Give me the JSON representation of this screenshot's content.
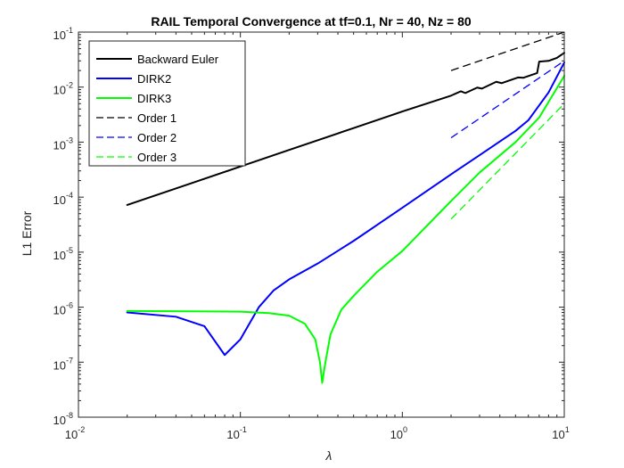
{
  "chart_data": {
    "type": "line",
    "title": "RAIL Temporal Convergence at tf=0.1, Nr = 40, Nz = 80",
    "xlabel": "λ",
    "ylabel": "L1 Error",
    "xscale": "log",
    "yscale": "log",
    "xlim": [
      0.01,
      10
    ],
    "ylim": [
      1e-08,
      0.1
    ],
    "grid": false,
    "legend_position": "top-left",
    "x_ticks": [
      {
        "base": "10",
        "exp": "-2",
        "value": 0.01
      },
      {
        "base": "10",
        "exp": "-1",
        "value": 0.1
      },
      {
        "base": "10",
        "exp": "0",
        "value": 1
      },
      {
        "base": "10",
        "exp": "1",
        "value": 10
      }
    ],
    "y_ticks": [
      {
        "base": "10",
        "exp": "-8",
        "value": 1e-08
      },
      {
        "base": "10",
        "exp": "-7",
        "value": 1e-07
      },
      {
        "base": "10",
        "exp": "-6",
        "value": 1e-06
      },
      {
        "base": "10",
        "exp": "-5",
        "value": 1e-05
      },
      {
        "base": "10",
        "exp": "-4",
        "value": 0.0001
      },
      {
        "base": "10",
        "exp": "-3",
        "value": 0.001
      },
      {
        "base": "10",
        "exp": "-2",
        "value": 0.01
      },
      {
        "base": "10",
        "exp": "-1",
        "value": 0.1
      }
    ],
    "series": [
      {
        "name": "Backward Euler",
        "color": "#000000",
        "dash": "solid",
        "width": 2,
        "points": [
          [
            0.02,
            7.2e-05
          ],
          [
            0.05,
            0.00018
          ],
          [
            0.1,
            0.00036
          ],
          [
            0.2,
            0.00072
          ],
          [
            0.5,
            0.0018
          ],
          [
            1.0,
            0.0036
          ],
          [
            2.0,
            0.007
          ],
          [
            2.3,
            0.0084
          ],
          [
            2.45,
            0.0078
          ],
          [
            2.9,
            0.0098
          ],
          [
            3.1,
            0.0094
          ],
          [
            3.8,
            0.0125
          ],
          [
            4.1,
            0.0118
          ],
          [
            5.2,
            0.015
          ],
          [
            5.6,
            0.0148
          ],
          [
            6.8,
            0.018
          ],
          [
            7.0,
            0.029
          ],
          [
            8.0,
            0.03
          ],
          [
            9.0,
            0.034
          ],
          [
            10.0,
            0.042
          ]
        ]
      },
      {
        "name": "DIRK2",
        "color": "#0000ff",
        "dash": "solid",
        "width": 2,
        "points": [
          [
            0.02,
            8e-07
          ],
          [
            0.04,
            6.7e-07
          ],
          [
            0.06,
            4.5e-07
          ],
          [
            0.08,
            1.35e-07
          ],
          [
            0.1,
            2.6e-07
          ],
          [
            0.13,
            1e-06
          ],
          [
            0.16,
            2e-06
          ],
          [
            0.2,
            3.2e-06
          ],
          [
            0.3,
            6.2e-06
          ],
          [
            0.5,
            1.6e-05
          ],
          [
            1.0,
            6.4e-05
          ],
          [
            2.0,
            0.00026
          ],
          [
            3.0,
            0.00058
          ],
          [
            5.0,
            0.0016
          ],
          [
            6.0,
            0.0025
          ],
          [
            8.0,
            0.008
          ],
          [
            10.0,
            0.028
          ]
        ]
      },
      {
        "name": "DIRK3",
        "color": "#00ff00",
        "dash": "solid",
        "width": 2,
        "points": [
          [
            0.02,
            8.5e-07
          ],
          [
            0.05,
            8.4e-07
          ],
          [
            0.1,
            8.3e-07
          ],
          [
            0.15,
            7.8e-07
          ],
          [
            0.2,
            7e-07
          ],
          [
            0.25,
            5e-07
          ],
          [
            0.29,
            2.6e-07
          ],
          [
            0.31,
            1e-07
          ],
          [
            0.32,
            4.2e-08
          ],
          [
            0.335,
            1e-07
          ],
          [
            0.36,
            3.2e-07
          ],
          [
            0.42,
            9e-07
          ],
          [
            0.5,
            1.6e-06
          ],
          [
            0.7,
            4.4e-06
          ],
          [
            1.0,
            1.05e-05
          ],
          [
            2.0,
            8.5e-05
          ],
          [
            3.0,
            0.00028
          ],
          [
            5.0,
            0.001
          ],
          [
            7.0,
            0.0028
          ],
          [
            10.0,
            0.016
          ]
        ]
      },
      {
        "name": "Order 1",
        "color": "#000000",
        "dash": "dashed",
        "width": 1.3,
        "points": [
          [
            2.0,
            0.02
          ],
          [
            10.0,
            0.1
          ]
        ]
      },
      {
        "name": "Order 2",
        "color": "#0000ff",
        "dash": "dashed",
        "width": 1.3,
        "points": [
          [
            2.0,
            0.0012
          ],
          [
            10.0,
            0.03
          ]
        ]
      },
      {
        "name": "Order 3",
        "color": "#00ff00",
        "dash": "dashed",
        "width": 1.3,
        "points": [
          [
            2.0,
            4e-05
          ],
          [
            10.0,
            0.005
          ]
        ]
      }
    ]
  }
}
